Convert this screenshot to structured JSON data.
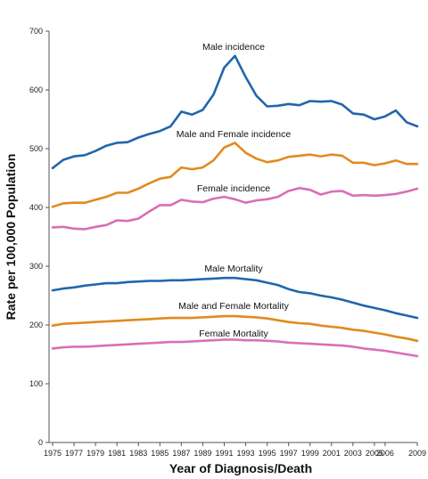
{
  "chart_data": {
    "type": "line",
    "xlabel": "Year of Diagnosis/Death",
    "ylabel": "Rate per 100,000 Population",
    "ylim": [
      0,
      700
    ],
    "yticks": [
      0,
      100,
      200,
      300,
      400,
      500,
      600,
      700
    ],
    "xlim": [
      1975,
      2009
    ],
    "xticks": [
      1975,
      1977,
      1979,
      1981,
      1983,
      1985,
      1987,
      1989,
      1991,
      1993,
      1995,
      1997,
      1999,
      2001,
      2003,
      2005,
      2006,
      2009
    ],
    "grid": false,
    "legend": "none",
    "x": [
      1975,
      1976,
      1977,
      1978,
      1979,
      1980,
      1981,
      1982,
      1983,
      1984,
      1985,
      1986,
      1987,
      1988,
      1989,
      1990,
      1991,
      1992,
      1993,
      1994,
      1995,
      1996,
      1997,
      1998,
      1999,
      2000,
      2001,
      2002,
      2003,
      2004,
      2005,
      2006,
      2007,
      2008,
      2009
    ],
    "series": [
      {
        "name": "Male incidence",
        "color": "#2166ac",
        "values": [
          467,
          481,
          487,
          489,
          496,
          505,
          510,
          511,
          519,
          525,
          530,
          538,
          563,
          558,
          566,
          592,
          638,
          658,
          622,
          590,
          572,
          573,
          576,
          574,
          581,
          580,
          581,
          575,
          560,
          558,
          550,
          555,
          565,
          545,
          538
        ]
      },
      {
        "name": "Male and Female incidence",
        "color": "#e08b1e",
        "values": [
          401,
          407,
          408,
          408,
          413,
          418,
          425,
          425,
          432,
          441,
          449,
          452,
          468,
          465,
          468,
          480,
          502,
          510,
          493,
          483,
          477,
          480,
          486,
          488,
          490,
          487,
          490,
          488,
          476,
          476,
          472,
          475,
          480,
          474,
          474
        ]
      },
      {
        "name": "Female incidence",
        "color": "#d96fb5",
        "values": [
          366,
          367,
          364,
          363,
          367,
          370,
          378,
          377,
          381,
          393,
          404,
          404,
          413,
          410,
          409,
          415,
          418,
          414,
          408,
          412,
          414,
          418,
          428,
          433,
          430,
          422,
          427,
          428,
          420,
          421,
          420,
          421,
          423,
          427,
          432
        ]
      },
      {
        "name": "Male Mortality",
        "color": "#2166ac",
        "values": [
          259,
          262,
          264,
          267,
          269,
          271,
          271,
          273,
          274,
          275,
          275,
          276,
          276,
          277,
          278,
          279,
          280,
          280,
          278,
          276,
          272,
          268,
          261,
          256,
          254,
          250,
          247,
          243,
          238,
          233,
          229,
          225,
          220,
          216,
          212
        ]
      },
      {
        "name": "Male and Female Mortality",
        "color": "#e08b1e",
        "values": [
          199,
          202,
          203,
          204,
          205,
          206,
          207,
          208,
          209,
          210,
          211,
          212,
          212,
          212,
          213,
          214,
          215,
          215,
          214,
          213,
          211,
          208,
          205,
          203,
          202,
          199,
          197,
          195,
          192,
          190,
          187,
          184,
          180,
          177,
          173
        ]
      },
      {
        "name": "Female Mortality",
        "color": "#d96fb5",
        "values": [
          160,
          162,
          163,
          163,
          164,
          165,
          166,
          167,
          168,
          169,
          170,
          171,
          171,
          172,
          173,
          174,
          175,
          175,
          174,
          174,
          173,
          172,
          170,
          169,
          168,
          167,
          166,
          165,
          163,
          160,
          158,
          156,
          153,
          150,
          147
        ]
      }
    ]
  }
}
